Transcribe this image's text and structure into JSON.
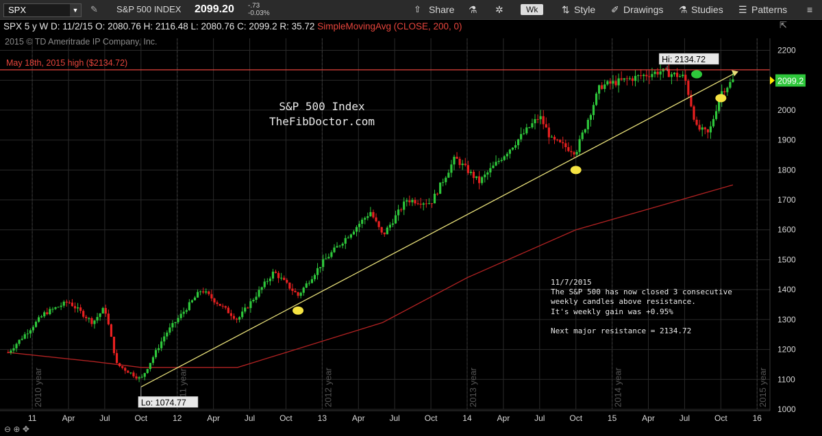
{
  "toolbar": {
    "symbol": "SPX",
    "index_name": "S&P 500 INDEX",
    "last_price": "2099.20",
    "change": "-.73",
    "change_pct": "-0.03%",
    "share_label": "Share",
    "timeframe": "Wk",
    "style_label": "Style",
    "drawings_label": "Drawings",
    "studies_label": "Studies",
    "patterns_label": "Patterns"
  },
  "info_bar": {
    "symbol": "SPX 5 y W",
    "date": "D: 11/2/15",
    "open": "O: 2080.76",
    "high": "H: 2116.48",
    "low": "L: 2080.76",
    "close": "C: 2099.2",
    "range": "R: 35.72",
    "sma": "SimpleMovingAvg (CLOSE, 200, 0)"
  },
  "copyright": "2015 © TD Ameritrade IP Company, Inc.",
  "chart_data": {
    "type": "candlestick",
    "title": "S&P 500 Index",
    "subtitle": "TheFibDoctor.com",
    "y_axis": {
      "ticks": [
        1000,
        1100,
        1200,
        1300,
        1400,
        1500,
        1600,
        1700,
        1800,
        1900,
        2000,
        2100,
        2200
      ],
      "range": [
        1000,
        2240
      ],
      "position": "right"
    },
    "x_axis": {
      "tick_labels": [
        "11",
        "Apr",
        "Jul",
        "Oct",
        "12",
        "Apr",
        "Jul",
        "Oct",
        "13",
        "Apr",
        "Jul",
        "Oct",
        "14",
        "Apr",
        "Jul",
        "Oct",
        "15",
        "Apr",
        "Jul",
        "Oct",
        "16"
      ]
    },
    "year_labels": [
      "2010 year",
      "2011 year",
      "2012 year",
      "2013 year",
      "2014 year",
      "2015 year"
    ],
    "key_points": {
      "start": {
        "date": "2010-11",
        "value": 1190
      },
      "low": {
        "label": "Lo: 1074.77",
        "value": 1074.77,
        "date": "2011-10"
      },
      "high": {
        "label": "Hi: 2134.72",
        "value": 2134.72,
        "date": "2015-05"
      },
      "last": {
        "label": "2099.2",
        "value": 2099.2,
        "date": "2015-11"
      }
    },
    "price_path": [
      [
        "2010-11",
        1190
      ],
      [
        "2011-02",
        1320
      ],
      [
        "2011-04",
        1360
      ],
      [
        "2011-06",
        1290
      ],
      [
        "2011-07",
        1340
      ],
      [
        "2011-08",
        1150
      ],
      [
        "2011-10",
        1100
      ],
      [
        "2011-12",
        1250
      ],
      [
        "2012-03",
        1400
      ],
      [
        "2012-06",
        1300
      ],
      [
        "2012-09",
        1460
      ],
      [
        "2012-11",
        1380
      ],
      [
        "2013-01",
        1490
      ],
      [
        "2013-05",
        1660
      ],
      [
        "2013-06",
        1580
      ],
      [
        "2013-08",
        1700
      ],
      [
        "2013-10",
        1690
      ],
      [
        "2013-12",
        1840
      ],
      [
        "2014-02",
        1760
      ],
      [
        "2014-07",
        1980
      ],
      [
        "2014-08",
        1900
      ],
      [
        "2014-10",
        1860
      ],
      [
        "2014-12",
        2080
      ],
      [
        "2015-02",
        2100
      ],
      [
        "2015-05",
        2130
      ],
      [
        "2015-07",
        2110
      ],
      [
        "2015-08",
        1940
      ],
      [
        "2015-09",
        1920
      ],
      [
        "2015-10",
        2060
      ],
      [
        "2015-11",
        2099.2
      ]
    ],
    "resistance_line": {
      "label": "May 18th, 2015 high ($2134.72)",
      "value": 2134.72,
      "color": "#e8453c"
    },
    "trendline": {
      "from": {
        "date": "2011-10",
        "value": 1074.77
      },
      "to": {
        "date": "2015-11",
        "value": 2120
      },
      "color": "#e8e07a"
    },
    "sma200": {
      "color": "#b22222",
      "points": [
        [
          "2010-11",
          1190
        ],
        [
          "2011-06",
          1160
        ],
        [
          "2011-10",
          1140
        ],
        [
          "2012-06",
          1140
        ],
        [
          "2012-10",
          1190
        ],
        [
          "2013-06",
          1290
        ],
        [
          "2014-01",
          1440
        ],
        [
          "2014-10",
          1600
        ],
        [
          "2015-11",
          1750
        ]
      ]
    },
    "markers": [
      {
        "date": "2012-11",
        "value": 1330,
        "color": "#f5e342"
      },
      {
        "date": "2014-10",
        "value": 1800,
        "color": "#f5e342"
      },
      {
        "date": "2015-10",
        "value": 2040,
        "color": "#f5e342"
      },
      {
        "date": "2015-08",
        "value": 2120,
        "color": "#2ec73b"
      }
    ],
    "colors": {
      "up": "#2ec73b",
      "down": "#e82020",
      "grid": "#2a2a2a"
    }
  },
  "note": {
    "lines": [
      "11/7/2015",
      "The S&P 500 has now closed 3 consecutive",
      "weekly candles above resistance.",
      "It's weekly gain was +0.95%",
      "",
      "Next major resistance = 2134.72"
    ]
  }
}
